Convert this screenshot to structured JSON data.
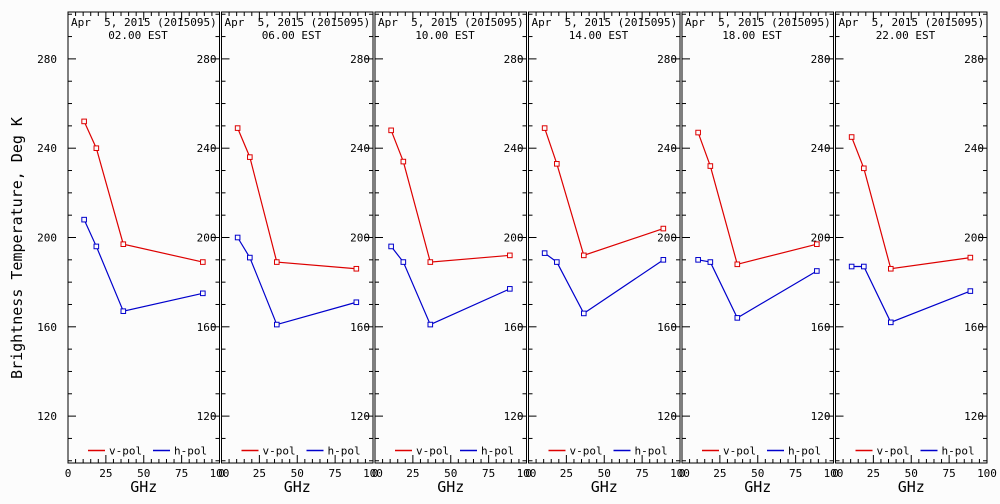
{
  "figure": {
    "background": "#fcfcfc",
    "axis_color": "#000000",
    "text_color": "#000000"
  },
  "chart_data": {
    "type": "line",
    "xlabel": "GHz",
    "ylabel": "Brightness Temperature, Deg K",
    "x": [
      10.65,
      18.7,
      36.5,
      89.0
    ],
    "xlim": [
      0,
      100
    ],
    "ylim": [
      99,
      301
    ],
    "x_major_ticks": [
      0,
      25,
      50,
      75,
      100
    ],
    "x_minor_step": 5,
    "y_major_ticks": [
      120,
      160,
      200,
      240,
      280
    ],
    "y_minor_step": 10,
    "grid": false,
    "legend_position": "bottom-inside-each-panel",
    "legend": [
      {
        "label": "v-pol",
        "color": "#dd0000"
      },
      {
        "label": "h-pol",
        "color": "#0000cc"
      }
    ],
    "panels": [
      {
        "title": "Apr  5, 2015 (2015095)",
        "subtitle": "02.00 EST",
        "series": [
          {
            "name": "v-pol",
            "color": "#dd0000",
            "values": [
              252,
              240,
              197,
              189
            ]
          },
          {
            "name": "h-pol",
            "color": "#0000cc",
            "values": [
              208,
              196,
              167,
              175
            ]
          }
        ]
      },
      {
        "title": "Apr  5, 2015 (2015095)",
        "subtitle": "06.00 EST",
        "series": [
          {
            "name": "v-pol",
            "color": "#dd0000",
            "values": [
              249,
              236,
              189,
              186
            ]
          },
          {
            "name": "h-pol",
            "color": "#0000cc",
            "values": [
              200,
              191,
              161,
              171
            ]
          }
        ]
      },
      {
        "title": "Apr  5, 2015 (2015095)",
        "subtitle": "10.00 EST",
        "series": [
          {
            "name": "v-pol",
            "color": "#dd0000",
            "values": [
              248,
              234,
              189,
              192
            ]
          },
          {
            "name": "h-pol",
            "color": "#0000cc",
            "values": [
              196,
              189,
              161,
              177
            ]
          }
        ]
      },
      {
        "title": "Apr  5, 2015 (2015095)",
        "subtitle": "14.00 EST",
        "series": [
          {
            "name": "v-pol",
            "color": "#dd0000",
            "values": [
              249,
              233,
              192,
              204
            ]
          },
          {
            "name": "h-pol",
            "color": "#0000cc",
            "values": [
              193,
              189,
              166,
              190
            ]
          }
        ]
      },
      {
        "title": "Apr  5, 2015 (2015095)",
        "subtitle": "18.00 EST",
        "series": [
          {
            "name": "v-pol",
            "color": "#dd0000",
            "values": [
              247,
              232,
              188,
              197
            ]
          },
          {
            "name": "h-pol",
            "color": "#0000cc",
            "values": [
              190,
              189,
              164,
              185
            ]
          }
        ]
      },
      {
        "title": "Apr  5, 2015 (2015095)",
        "subtitle": "22.00 EST",
        "series": [
          {
            "name": "v-pol",
            "color": "#dd0000",
            "values": [
              245,
              231,
              186,
              191
            ]
          },
          {
            "name": "h-pol",
            "color": "#0000cc",
            "values": [
              187,
              187,
              162,
              176
            ]
          }
        ]
      }
    ]
  }
}
